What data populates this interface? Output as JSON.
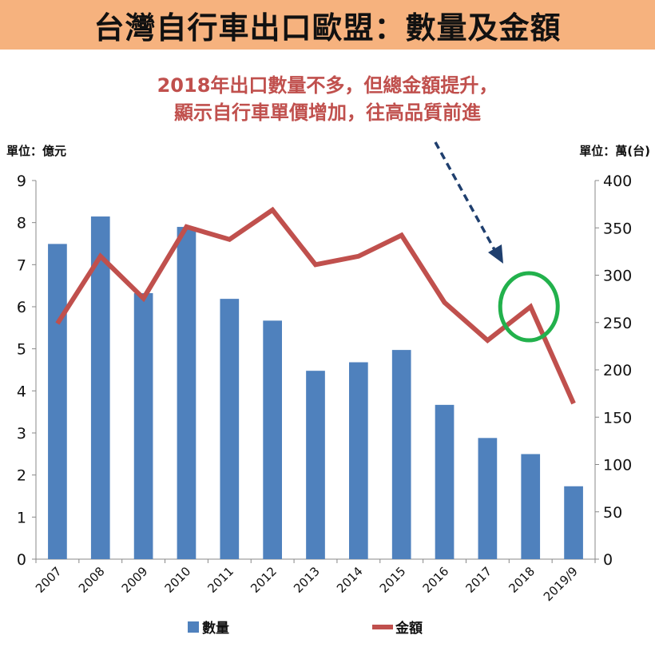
{
  "title": "台灣自行車出口歐盟：數量及金額",
  "annotation": {
    "line1": "2018年出口數量不多，但總金額提升，",
    "line2": "顯示自行車單價增加，往高品質前進"
  },
  "colors": {
    "title_bg": "#f6b27e",
    "annotation_text": "#c0504d",
    "bars": "#4f81bd",
    "line": "#c0504d",
    "arrow": "#1f3f6e",
    "highlight_circle": "#22b14c"
  },
  "chart_data": {
    "type": "bar+line",
    "categories": [
      "2007",
      "2008",
      "2009",
      "2010",
      "2011",
      "2012",
      "2013",
      "2014",
      "2015",
      "2016",
      "2017",
      "2018",
      "2019/9"
    ],
    "series": [
      {
        "name": "數量",
        "type": "bar",
        "axis": "right",
        "values": [
          333,
          362,
          281,
          351,
          275,
          252,
          199,
          208,
          221,
          163,
          128,
          111,
          77
        ]
      },
      {
        "name": "金額",
        "type": "line",
        "axis": "left",
        "values": [
          5.6,
          7.2,
          6.2,
          7.9,
          7.6,
          8.3,
          7.0,
          7.2,
          7.7,
          6.1,
          5.2,
          6.0,
          3.7
        ]
      }
    ],
    "y_left": {
      "unit_label": "單位：億元",
      "range": [
        0,
        9
      ],
      "ticks": [
        "0",
        "1",
        "2",
        "3",
        "4",
        "5",
        "6",
        "7",
        "8",
        "9"
      ]
    },
    "y_right": {
      "unit_label": "單位：萬(台)",
      "range": [
        0,
        400
      ],
      "ticks": [
        "0",
        "50",
        "100",
        "150",
        "200",
        "250",
        "300",
        "350",
        "400"
      ]
    },
    "highlight_category": "2018",
    "legend": [
      "數量",
      "金額"
    ],
    "legend_position": "bottom",
    "grid": false
  }
}
